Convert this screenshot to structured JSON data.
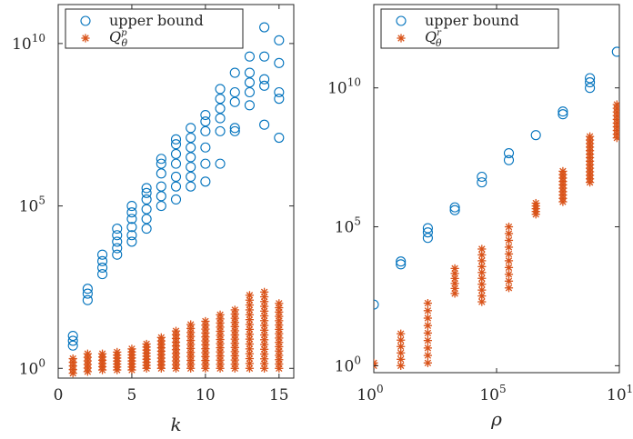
{
  "chart_data": [
    {
      "type": "scatter",
      "xlabel": "k",
      "ylabel": "",
      "yscale": "log",
      "xlim": [
        0,
        16
      ],
      "ylim_log10": [
        -0.3,
        11.2
      ],
      "xticks": [
        0,
        5,
        10,
        15
      ],
      "xtick_labels": [
        "0",
        "5",
        "10",
        "15"
      ],
      "yticks_log10": [
        0,
        5,
        10
      ],
      "ytick_labels": [
        {
          "base": "10",
          "exp": "0"
        },
        {
          "base": "10",
          "exp": "5"
        },
        {
          "base": "10",
          "exp": "10"
        }
      ],
      "grid": false,
      "legend_position": "top-left",
      "legend": [
        {
          "label": "upper bound",
          "marker": "circle",
          "color": "#0072BD"
        },
        {
          "label": "Q_θ^p",
          "marker": "asterisk",
          "color": "#D95319"
        }
      ],
      "series": [
        {
          "name": "upper bound",
          "marker": "circle",
          "color": "#0072BD",
          "points": [
            {
              "x": 1,
              "log10y": 0.7
            },
            {
              "x": 1,
              "log10y": 0.85
            },
            {
              "x": 1,
              "log10y": 1.0
            },
            {
              "x": 2,
              "log10y": 2.1
            },
            {
              "x": 2,
              "log10y": 2.3
            },
            {
              "x": 2,
              "log10y": 2.45
            },
            {
              "x": 3,
              "log10y": 2.9
            },
            {
              "x": 3,
              "log10y": 3.1
            },
            {
              "x": 3,
              "log10y": 3.3
            },
            {
              "x": 3,
              "log10y": 3.5
            },
            {
              "x": 4,
              "log10y": 3.5
            },
            {
              "x": 4,
              "log10y": 3.7
            },
            {
              "x": 4,
              "log10y": 3.9
            },
            {
              "x": 4,
              "log10y": 4.1
            },
            {
              "x": 4,
              "log10y": 4.3
            },
            {
              "x": 5,
              "log10y": 3.9
            },
            {
              "x": 5,
              "log10y": 4.1
            },
            {
              "x": 5,
              "log10y": 4.35
            },
            {
              "x": 5,
              "log10y": 4.6
            },
            {
              "x": 5,
              "log10y": 4.8
            },
            {
              "x": 5,
              "log10y": 5.0
            },
            {
              "x": 6,
              "log10y": 4.3
            },
            {
              "x": 6,
              "log10y": 4.6
            },
            {
              "x": 6,
              "log10y": 4.9
            },
            {
              "x": 6,
              "log10y": 5.2
            },
            {
              "x": 6,
              "log10y": 5.4
            },
            {
              "x": 6,
              "log10y": 5.55
            },
            {
              "x": 7,
              "log10y": 5.0
            },
            {
              "x": 7,
              "log10y": 5.3
            },
            {
              "x": 7,
              "log10y": 5.6
            },
            {
              "x": 7,
              "log10y": 6.0
            },
            {
              "x": 7,
              "log10y": 6.3
            },
            {
              "x": 7,
              "log10y": 6.45
            },
            {
              "x": 8,
              "log10y": 5.2
            },
            {
              "x": 8,
              "log10y": 5.6
            },
            {
              "x": 8,
              "log10y": 5.9
            },
            {
              "x": 8,
              "log10y": 6.3
            },
            {
              "x": 8,
              "log10y": 6.6
            },
            {
              "x": 8,
              "log10y": 6.9
            },
            {
              "x": 8,
              "log10y": 7.05
            },
            {
              "x": 9,
              "log10y": 5.6
            },
            {
              "x": 9,
              "log10y": 5.9
            },
            {
              "x": 9,
              "log10y": 6.2
            },
            {
              "x": 9,
              "log10y": 6.5
            },
            {
              "x": 9,
              "log10y": 6.8
            },
            {
              "x": 9,
              "log10y": 7.1
            },
            {
              "x": 9,
              "log10y": 7.4
            },
            {
              "x": 10,
              "log10y": 5.75
            },
            {
              "x": 10,
              "log10y": 6.3
            },
            {
              "x": 10,
              "log10y": 6.8
            },
            {
              "x": 10,
              "log10y": 7.3
            },
            {
              "x": 10,
              "log10y": 7.6
            },
            {
              "x": 10,
              "log10y": 7.8
            },
            {
              "x": 11,
              "log10y": 6.3
            },
            {
              "x": 11,
              "log10y": 7.3
            },
            {
              "x": 11,
              "log10y": 7.7
            },
            {
              "x": 11,
              "log10y": 8.0
            },
            {
              "x": 11,
              "log10y": 8.3
            },
            {
              "x": 11,
              "log10y": 8.6
            },
            {
              "x": 12,
              "log10y": 7.3
            },
            {
              "x": 12,
              "log10y": 7.4
            },
            {
              "x": 12,
              "log10y": 8.2
            },
            {
              "x": 12,
              "log10y": 8.5
            },
            {
              "x": 12,
              "log10y": 9.1
            },
            {
              "x": 13,
              "log10y": 8.1
            },
            {
              "x": 13,
              "log10y": 8.5
            },
            {
              "x": 13,
              "log10y": 8.8
            },
            {
              "x": 13,
              "log10y": 9.1
            },
            {
              "x": 13,
              "log10y": 9.6
            },
            {
              "x": 14,
              "log10y": 7.5
            },
            {
              "x": 14,
              "log10y": 8.7
            },
            {
              "x": 14,
              "log10y": 8.9
            },
            {
              "x": 14,
              "log10y": 9.6
            },
            {
              "x": 14,
              "log10y": 10.5
            },
            {
              "x": 15,
              "log10y": 7.1
            },
            {
              "x": 15,
              "log10y": 8.3
            },
            {
              "x": 15,
              "log10y": 8.5
            },
            {
              "x": 15,
              "log10y": 9.4
            },
            {
              "x": 15,
              "log10y": 10.1
            }
          ]
        },
        {
          "name": "Q_θ^p",
          "marker": "asterisk",
          "color": "#D95319",
          "columns": [
            {
              "x": 1,
              "log10y_min": -0.15,
              "log10y_max": 0.3,
              "count": 5
            },
            {
              "x": 2,
              "log10y_min": -0.1,
              "log10y_max": 0.45,
              "count": 6
            },
            {
              "x": 3,
              "log10y_min": -0.05,
              "log10y_max": 0.45,
              "count": 6
            },
            {
              "x": 4,
              "log10y_min": -0.05,
              "log10y_max": 0.5,
              "count": 7
            },
            {
              "x": 5,
              "log10y_min": -0.05,
              "log10y_max": 0.6,
              "count": 8
            },
            {
              "x": 6,
              "log10y_min": 0.0,
              "log10y_max": 0.75,
              "count": 9
            },
            {
              "x": 7,
              "log10y_min": 0.0,
              "log10y_max": 0.95,
              "count": 10
            },
            {
              "x": 8,
              "log10y_min": 0.0,
              "log10y_max": 1.15,
              "count": 11
            },
            {
              "x": 9,
              "log10y_min": 0.0,
              "log10y_max": 1.35,
              "count": 12
            },
            {
              "x": 10,
              "log10y_min": 0.0,
              "log10y_max": 1.45,
              "count": 13
            },
            {
              "x": 11,
              "log10y_min": 0.0,
              "log10y_max": 1.65,
              "count": 14
            },
            {
              "x": 12,
              "log10y_min": 0.0,
              "log10y_max": 1.8,
              "count": 15
            },
            {
              "x": 13,
              "log10y_min": 0.0,
              "log10y_max": 2.25,
              "count": 16
            },
            {
              "x": 14,
              "log10y_min": 0.0,
              "log10y_max": 2.35,
              "count": 17
            },
            {
              "x": 15,
              "log10y_min": 0.0,
              "log10y_max": 2.0,
              "count": 16
            }
          ]
        }
      ]
    },
    {
      "type": "scatter",
      "xlabel": "ρ",
      "ylabel": "",
      "xscale": "log",
      "yscale": "log",
      "xlim_log10": [
        0,
        10
      ],
      "ylim_log10": [
        -0.25,
        13
      ],
      "xticks_log10": [
        0,
        5,
        10
      ],
      "xtick_labels": [
        {
          "base": "10",
          "exp": "0"
        },
        {
          "base": "10",
          "exp": "5"
        },
        {
          "base": "10",
          "exp": "10"
        }
      ],
      "yticks_log10": [
        0,
        5,
        10
      ],
      "ytick_labels": [
        {
          "base": "10",
          "exp": "0"
        },
        {
          "base": "10",
          "exp": "5"
        },
        {
          "base": "10",
          "exp": "10"
        }
      ],
      "grid": false,
      "legend_position": "top-left",
      "legend": [
        {
          "label": "upper bound",
          "marker": "circle",
          "color": "#0072BD"
        },
        {
          "label": "Q_θ^r",
          "marker": "asterisk",
          "color": "#D95319"
        }
      ],
      "series": [
        {
          "name": "upper bound",
          "marker": "circle",
          "color": "#0072BD",
          "points": [
            {
              "log10x": 0.0,
              "log10y": 2.2
            },
            {
              "log10x": 1.1,
              "log10y": 3.65
            },
            {
              "log10x": 1.1,
              "log10y": 3.75
            },
            {
              "log10x": 2.2,
              "log10y": 4.6
            },
            {
              "log10x": 2.2,
              "log10y": 4.8
            },
            {
              "log10x": 2.2,
              "log10y": 4.95
            },
            {
              "log10x": 3.3,
              "log10y": 5.6
            },
            {
              "log10x": 3.3,
              "log10y": 5.7
            },
            {
              "log10x": 4.4,
              "log10y": 6.6
            },
            {
              "log10x": 4.4,
              "log10y": 6.8
            },
            {
              "log10x": 5.5,
              "log10y": 7.4
            },
            {
              "log10x": 5.5,
              "log10y": 7.65
            },
            {
              "log10x": 6.6,
              "log10y": 8.3
            },
            {
              "log10x": 7.7,
              "log10y": 9.05
            },
            {
              "log10x": 7.7,
              "log10y": 9.15
            },
            {
              "log10x": 8.8,
              "log10y": 10.0
            },
            {
              "log10x": 8.8,
              "log10y": 10.2
            },
            {
              "log10x": 8.8,
              "log10y": 10.35
            },
            {
              "log10x": 9.9,
              "log10y": 11.3
            },
            {
              "log10x": 11.0,
              "log10y": 12.35
            }
          ]
        },
        {
          "name": "Q_θ^r",
          "marker": "asterisk",
          "color": "#D95319",
          "columns": [
            {
              "log10x": 0.0,
              "log10y_min": 0.0,
              "log10y_max": 0.1,
              "count": 2
            },
            {
              "log10x": 1.1,
              "log10y_min": 0.0,
              "log10y_max": 1.15,
              "count": 6
            },
            {
              "log10x": 2.2,
              "log10y_min": 0.1,
              "log10y_max": 2.25,
              "count": 9
            },
            {
              "log10x": 3.3,
              "log10y_min": 2.6,
              "log10y_max": 3.5,
              "count": 6
            },
            {
              "log10x": 4.4,
              "log10y_min": 2.3,
              "log10y_max": 4.2,
              "count": 10
            },
            {
              "log10x": 5.5,
              "log10y_min": 2.8,
              "log10y_max": 5.0,
              "count": 10
            },
            {
              "log10x": 6.6,
              "log10y_min": 5.45,
              "log10y_max": 5.85,
              "count": 5
            },
            {
              "log10x": 7.7,
              "log10y_min": 5.9,
              "log10y_max": 7.0,
              "count": 10
            },
            {
              "log10x": 8.8,
              "log10y_min": 6.6,
              "log10y_max": 8.25,
              "count": 14
            },
            {
              "log10x": 9.9,
              "log10y_min": 8.2,
              "log10y_max": 9.4,
              "count": 10
            },
            {
              "log10x": 11.0,
              "log10y_min": 9.1,
              "log10y_max": 10.2,
              "count": 10
            }
          ]
        }
      ]
    }
  ]
}
